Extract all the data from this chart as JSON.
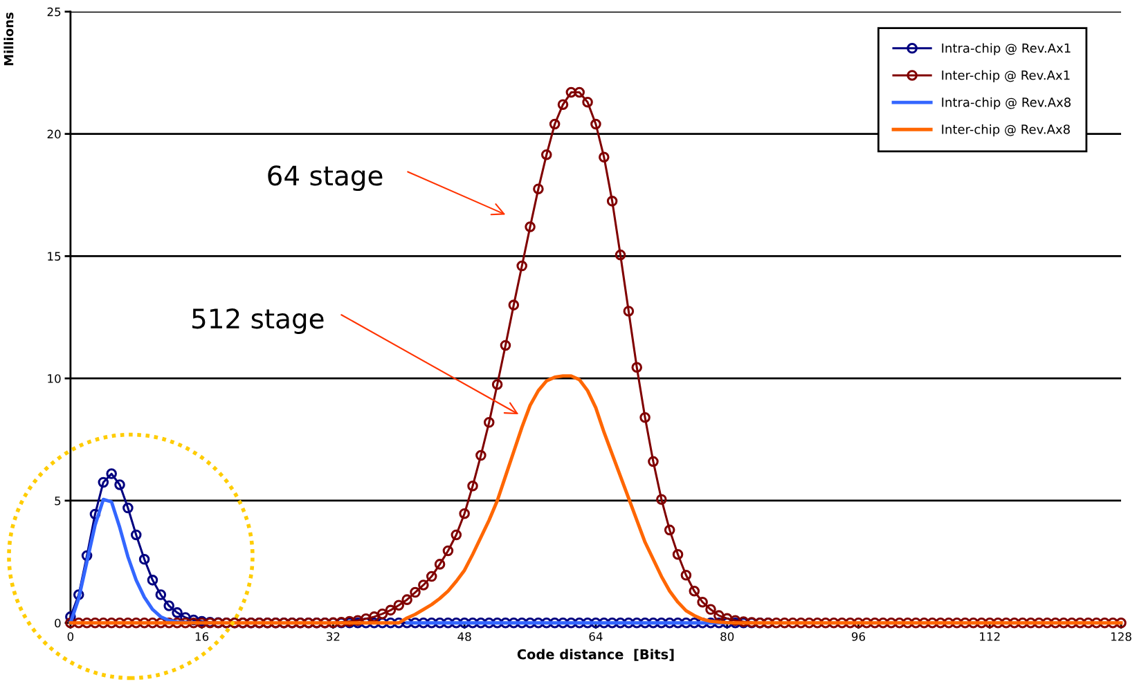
{
  "chart_data": {
    "type": "line",
    "xlabel": "Code distance  [Bits]",
    "ylabel": "Millions",
    "annotations": [
      "64 stage",
      "512 stage"
    ],
    "x": [
      0,
      1,
      2,
      3,
      4,
      5,
      6,
      7,
      8,
      9,
      10,
      11,
      12,
      13,
      14,
      15,
      16,
      17,
      18,
      19,
      20,
      21,
      22,
      23,
      24,
      25,
      26,
      27,
      28,
      29,
      30,
      31,
      32,
      33,
      34,
      35,
      36,
      37,
      38,
      39,
      40,
      41,
      42,
      43,
      44,
      45,
      46,
      47,
      48,
      49,
      50,
      51,
      52,
      53,
      54,
      55,
      56,
      57,
      58,
      59,
      60,
      61,
      62,
      63,
      64,
      65,
      66,
      67,
      68,
      69,
      70,
      71,
      72,
      73,
      74,
      75,
      76,
      77,
      78,
      79,
      80,
      81,
      82,
      83,
      84,
      85,
      86,
      87,
      88,
      89,
      90,
      91,
      92,
      93,
      94,
      95,
      96,
      97,
      98,
      99,
      100,
      101,
      102,
      103,
      104,
      105,
      106,
      107,
      108,
      109,
      110,
      111,
      112,
      113,
      114,
      115,
      116,
      117,
      118,
      119,
      120,
      121,
      122,
      123,
      124,
      125,
      126,
      127,
      128
    ],
    "series": [
      {
        "name": "Intra-chip @ Rev.Ax1",
        "color": "#000080",
        "marker": "circle",
        "values": [
          0.25,
          1.15,
          2.75,
          4.45,
          5.75,
          6.1,
          5.65,
          4.7,
          3.6,
          2.6,
          1.75,
          1.15,
          0.7,
          0.42,
          0.22,
          0.12,
          0.06,
          0.03,
          0.01,
          0.0,
          0,
          0,
          0,
          0,
          0,
          0,
          0,
          0,
          0,
          0.0,
          0,
          0,
          0,
          0,
          0,
          0,
          0,
          0,
          0,
          0.0,
          0,
          0,
          0,
          0,
          0,
          0,
          0,
          0,
          0,
          0.0,
          0,
          0,
          0,
          0,
          0,
          0,
          0,
          0,
          0,
          0.0,
          0,
          0,
          0,
          0,
          0,
          0,
          0,
          0,
          0,
          0.0,
          0,
          0,
          0,
          0,
          0,
          0,
          0,
          0,
          0,
          0.0,
          0,
          0,
          0,
          0,
          0,
          0,
          null,
          null,
          null,
          null,
          null,
          null,
          null,
          null,
          null,
          null,
          null,
          null,
          null,
          null,
          null,
          null,
          null,
          null,
          null,
          null,
          null,
          null,
          null,
          null,
          null,
          null,
          null,
          null,
          null,
          null,
          null,
          null,
          null,
          null,
          null,
          null,
          null,
          null,
          null,
          null,
          null,
          null,
          null
        ]
      },
      {
        "name": "Inter-chip @ Rev.Ax1",
        "color": "#800000",
        "marker": "circle",
        "values": [
          0.0,
          0,
          0,
          0,
          0,
          0,
          0,
          0,
          0,
          0,
          0.0,
          0,
          0,
          0,
          0,
          0,
          0,
          0,
          0,
          0,
          0.0,
          0,
          0,
          0,
          0,
          0,
          0,
          0,
          0,
          0,
          0.0,
          0,
          0.01,
          0.03,
          0.06,
          0.1,
          0.17,
          0.25,
          0.37,
          0.52,
          0.72,
          0.95,
          1.25,
          1.55,
          1.9,
          2.4,
          2.95,
          3.6,
          4.47,
          5.6,
          6.85,
          8.2,
          9.75,
          11.35,
          13.0,
          14.6,
          16.2,
          17.75,
          19.15,
          20.4,
          21.2,
          21.7,
          21.7,
          21.3,
          20.4,
          19.05,
          17.25,
          15.05,
          12.75,
          10.45,
          8.4,
          6.6,
          5.05,
          3.8,
          2.8,
          1.95,
          1.3,
          0.85,
          0.55,
          0.3,
          0.18,
          0.1,
          0.05,
          0.02,
          0.0,
          0,
          0,
          0,
          0,
          0,
          0,
          0,
          0,
          0,
          0.0,
          0,
          0,
          0,
          0,
          0,
          0,
          0,
          0,
          0,
          0.0,
          0,
          0,
          0,
          0,
          0,
          0,
          0,
          0,
          0,
          0.0,
          0,
          0,
          0,
          0,
          0,
          0,
          0,
          0,
          0,
          0.0,
          0,
          0,
          0,
          0
        ]
      },
      {
        "name": "Intra-chip @ Rev.Ax8",
        "color": "#3366ff",
        "marker": "none",
        "values": [
          0,
          1.0,
          2.5,
          4.0,
          5.05,
          4.95,
          3.9,
          2.7,
          1.75,
          1.05,
          0.55,
          0.25,
          0.1,
          0.04,
          0.02,
          0.01,
          null,
          null,
          null,
          null,
          null,
          null,
          null,
          null,
          null,
          null,
          null,
          null,
          null,
          null,
          null,
          null,
          null,
          null,
          null,
          null,
          null,
          null,
          null,
          null,
          null,
          0.0,
          0,
          0,
          0,
          0,
          0,
          0,
          0,
          0,
          0,
          0.0,
          0,
          0,
          0,
          0,
          0,
          0,
          0,
          0,
          0,
          0.0,
          0,
          0,
          0,
          0,
          0,
          0,
          0,
          0,
          0,
          0.0,
          0,
          0,
          0,
          0,
          0,
          0,
          0,
          0,
          0,
          null,
          null,
          null,
          null,
          null,
          null,
          null,
          null,
          null,
          null,
          null,
          null,
          null,
          null,
          null,
          null,
          null,
          null,
          null,
          null,
          null,
          null,
          null,
          null,
          null,
          null,
          null,
          null,
          null,
          null,
          null,
          null,
          null,
          null,
          null,
          null,
          null,
          null,
          null,
          null,
          null,
          null,
          null,
          null,
          null,
          null,
          null,
          null
        ]
      },
      {
        "name": "Inter-chip @ Rev.Ax8",
        "color": "#ff6600",
        "marker": "none",
        "values": [
          0.0,
          0,
          0,
          0,
          0,
          0,
          0,
          0,
          0,
          0,
          0.0,
          0,
          0,
          0,
          0,
          0,
          0,
          0,
          0,
          0,
          0.0,
          0,
          0,
          0,
          0,
          0,
          0,
          0,
          0,
          0,
          0.0,
          0,
          0,
          0,
          0,
          0,
          0,
          0,
          0,
          0,
          0.0,
          0.2,
          0.35,
          0.55,
          0.75,
          1.0,
          1.3,
          1.7,
          2.15,
          2.8,
          3.5,
          4.2,
          5.0,
          6.0,
          7.0,
          8.0,
          8.9,
          9.5,
          9.9,
          10.05,
          10.1,
          10.1,
          9.95,
          9.5,
          8.8,
          7.8,
          6.9,
          6.0,
          5.1,
          4.2,
          3.3,
          2.6,
          1.9,
          1.3,
          0.85,
          0.5,
          0.3,
          0.15,
          0.07,
          0.03,
          0.01,
          0.0,
          0,
          0,
          0,
          0,
          0,
          0,
          0,
          0,
          0,
          0.0,
          0,
          0,
          0,
          0,
          0,
          0,
          0,
          0,
          0,
          0.0,
          0,
          0,
          0,
          0,
          0,
          0,
          0,
          0,
          0,
          0.0,
          0,
          0,
          0,
          0,
          0,
          0,
          0,
          0,
          0,
          0.0,
          0,
          0,
          0,
          0,
          0,
          0,
          0
        ]
      }
    ],
    "xlim": [
      0,
      128
    ],
    "xticks": [
      0,
      16,
      32,
      48,
      64,
      80,
      96,
      112,
      128
    ],
    "ylim": [
      0,
      25
    ],
    "yticks": [
      0,
      5,
      10,
      15,
      20,
      25
    ],
    "grid": "y",
    "legend": "top right",
    "line_style": "solid"
  }
}
